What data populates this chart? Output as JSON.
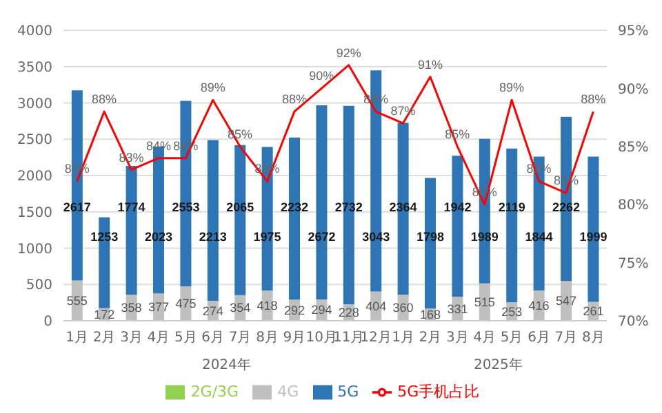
{
  "chart_data": {
    "type": "bar",
    "stacked": true,
    "categories": [
      "1月",
      "2月",
      "3月",
      "4月",
      "5月",
      "6月",
      "7月",
      "8月",
      "9月",
      "10月",
      "11月",
      "12月",
      "1月",
      "2月",
      "3月",
      "4月",
      "5月",
      "6月",
      "7月",
      "8月"
    ],
    "series": [
      {
        "name": "2G/3G",
        "color": "#92d050",
        "values": [
          null,
          null,
          null,
          null,
          null,
          null,
          null,
          null,
          null,
          null,
          null,
          null,
          null,
          null,
          null,
          null,
          null,
          null,
          null,
          null
        ]
      },
      {
        "name": "4G",
        "color": "#bfbfbf",
        "values": [
          555,
          172,
          358,
          377,
          475,
          274,
          354,
          418,
          292,
          294,
          228,
          404,
          360,
          168,
          331,
          515,
          253,
          416,
          547,
          261
        ]
      },
      {
        "name": "5G",
        "color": "#2e75b6",
        "values": [
          2617,
          1253,
          1774,
          2023,
          2553,
          2213,
          2065,
          1975,
          2232,
          2672,
          2732,
          3043,
          2364,
          1798,
          1942,
          1989,
          2119,
          1844,
          2262,
          1999
        ]
      },
      {
        "name": "5G手机占比",
        "type": "line",
        "axis": "y2",
        "color": "#ff0000",
        "values": [
          82,
          88,
          83,
          84,
          84,
          89,
          85,
          82,
          88,
          90,
          92,
          88,
          87,
          91,
          85,
          80,
          89,
          82,
          81,
          88
        ],
        "value_labels": [
          "82%",
          "88%",
          "83%",
          "84%",
          "84%",
          "89%",
          "85%",
          "82%",
          "88%",
          "90%",
          "92%",
          "88%",
          "87%",
          "91%",
          "85%",
          "80%",
          "89%",
          "82%",
          "81%",
          "88%"
        ]
      }
    ],
    "ylim": [
      0,
      4000
    ],
    "yticks": [
      0,
      500,
      1000,
      1500,
      2000,
      2500,
      3000,
      3500,
      4000
    ],
    "y2lim": [
      70,
      95
    ],
    "y2ticks": [
      {
        "value": 70,
        "label": "70%"
      },
      {
        "value": 75,
        "label": "75%"
      },
      {
        "value": 80,
        "label": "80%"
      },
      {
        "value": 85,
        "label": "85%"
      },
      {
        "value": 90,
        "label": "90%"
      },
      {
        "value": 95,
        "label": "95%"
      }
    ],
    "annotations": [
      "2024年",
      "2025年"
    ],
    "grid": "y",
    "legend": "bottom",
    "data_labels": true,
    "marker": "none"
  }
}
